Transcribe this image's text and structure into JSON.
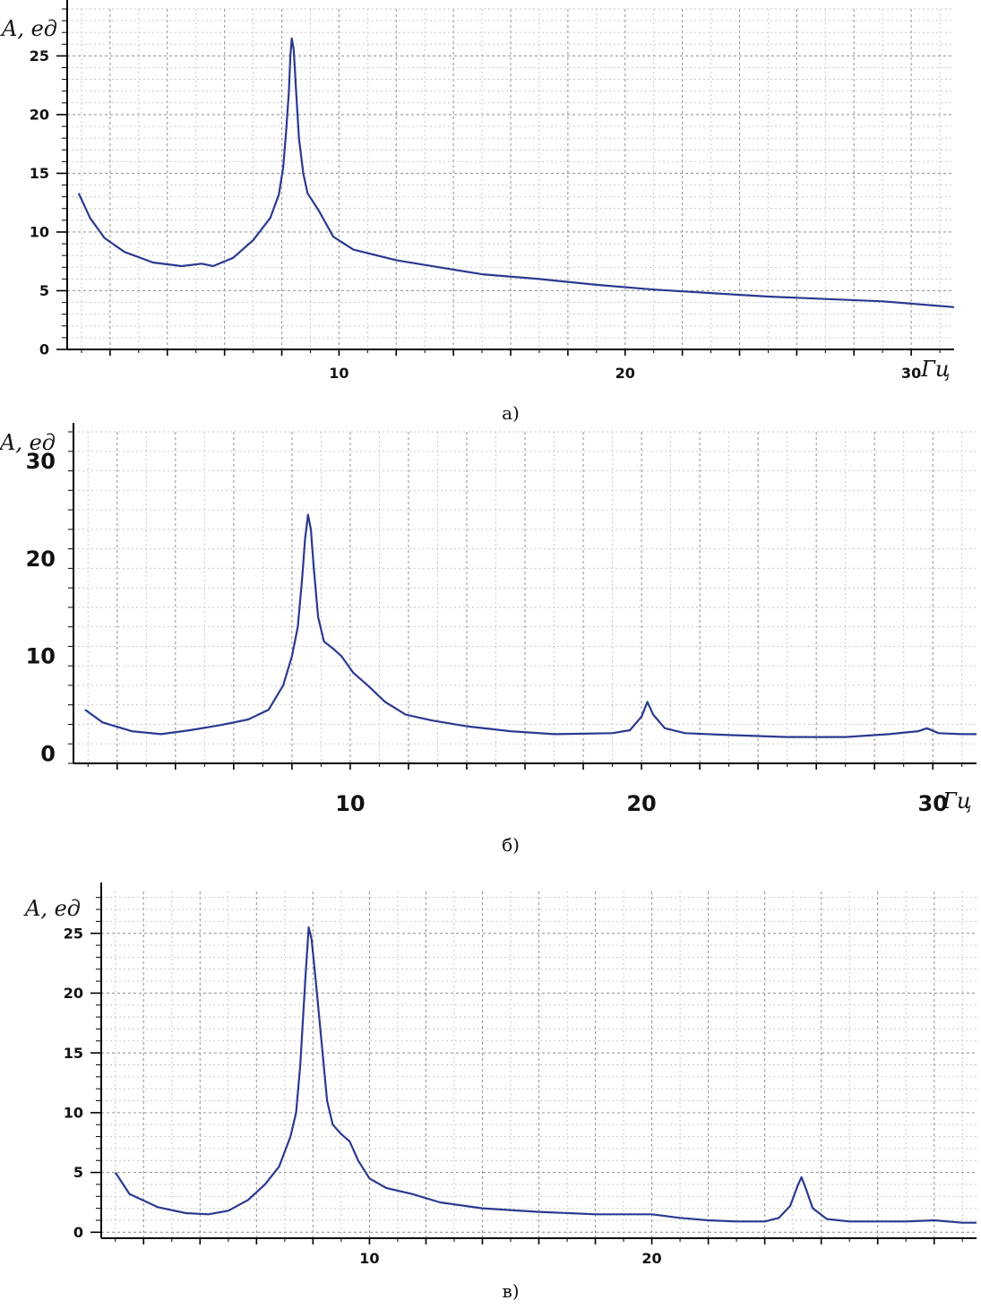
{
  "chart_data": [
    {
      "type": "line",
      "caption": "а)",
      "ylabel": "A, ед",
      "xlabel": "Гц",
      "xlim": [
        0.5,
        31.5
      ],
      "ylim": [
        0,
        29
      ],
      "x_ticks": [
        10,
        20,
        30
      ],
      "x_tick_labels": [
        "10",
        "20",
        "30"
      ],
      "y_ticks": [
        0,
        5,
        10,
        15,
        20,
        25
      ],
      "y_tick_labels": [
        "0",
        "5",
        "10",
        "15",
        "20",
        "25"
      ],
      "grid": true,
      "series": [
        {
          "color": "#2b3990",
          "points": [
            [
              0.9,
              13.3
            ],
            [
              1.3,
              11.2
            ],
            [
              1.8,
              9.5
            ],
            [
              2.5,
              8.3
            ],
            [
              3.5,
              7.4
            ],
            [
              4.5,
              7.1
            ],
            [
              5.2,
              7.3
            ],
            [
              5.6,
              7.1
            ],
            [
              6.3,
              7.8
            ],
            [
              7.0,
              9.3
            ],
            [
              7.6,
              11.2
            ],
            [
              7.9,
              13.2
            ],
            [
              8.05,
              15.5
            ],
            [
              8.15,
              18.5
            ],
            [
              8.25,
              22
            ],
            [
              8.3,
              25
            ],
            [
              8.35,
              26.5
            ],
            [
              8.42,
              25.5
            ],
            [
              8.5,
              22
            ],
            [
              8.6,
              18
            ],
            [
              8.75,
              15
            ],
            [
              8.9,
              13.3
            ],
            [
              9.3,
              11.8
            ],
            [
              9.8,
              9.6
            ],
            [
              10.5,
              8.5
            ],
            [
              12,
              7.6
            ],
            [
              13.5,
              7.0
            ],
            [
              15,
              6.4
            ],
            [
              17,
              6.0
            ],
            [
              19,
              5.5
            ],
            [
              21,
              5.1
            ],
            [
              23,
              4.8
            ],
            [
              25,
              4.5
            ],
            [
              27,
              4.3
            ],
            [
              29,
              4.1
            ],
            [
              31,
              3.7
            ],
            [
              31.5,
              3.6
            ]
          ]
        }
      ]
    },
    {
      "type": "line",
      "caption": "б)",
      "ylabel": "A, ед",
      "xlabel": "Гц",
      "xlim": [
        0.5,
        31.5
      ],
      "ylim": [
        -1,
        33
      ],
      "x_ticks": [
        10,
        20,
        30
      ],
      "x_tick_labels": [
        "10",
        "20",
        "30"
      ],
      "y_ticks": [
        0,
        10,
        20,
        30
      ],
      "y_tick_labels": [
        "0",
        "10",
        "20",
        "30"
      ],
      "grid": true,
      "series": [
        {
          "color": "#2b3990",
          "points": [
            [
              0.9,
              4.5
            ],
            [
              1.5,
              3.2
            ],
            [
              2.5,
              2.3
            ],
            [
              3.5,
              2.0
            ],
            [
              4.5,
              2.4
            ],
            [
              5.5,
              2.9
            ],
            [
              6.5,
              3.5
            ],
            [
              7.2,
              4.5
            ],
            [
              7.7,
              7.0
            ],
            [
              8.0,
              10.0
            ],
            [
              8.2,
              13.0
            ],
            [
              8.35,
              18.0
            ],
            [
              8.45,
              22.0
            ],
            [
              8.55,
              24.5
            ],
            [
              8.65,
              23.0
            ],
            [
              8.75,
              19.0
            ],
            [
              8.9,
              14.0
            ],
            [
              9.1,
              11.5
            ],
            [
              9.4,
              10.8
            ],
            [
              9.7,
              10.0
            ],
            [
              10.1,
              8.3
            ],
            [
              10.6,
              7.0
            ],
            [
              11.2,
              5.3
            ],
            [
              11.9,
              4.0
            ],
            [
              12.8,
              3.4
            ],
            [
              14,
              2.8
            ],
            [
              15.5,
              2.3
            ],
            [
              17,
              2.0
            ],
            [
              19,
              2.1
            ],
            [
              19.6,
              2.4
            ],
            [
              20.0,
              3.8
            ],
            [
              20.2,
              5.3
            ],
            [
              20.4,
              4.0
            ],
            [
              20.8,
              2.6
            ],
            [
              21.5,
              2.1
            ],
            [
              23,
              1.9
            ],
            [
              25,
              1.7
            ],
            [
              27,
              1.7
            ],
            [
              28.5,
              2.0
            ],
            [
              29.5,
              2.3
            ],
            [
              29.8,
              2.6
            ],
            [
              30.2,
              2.1
            ],
            [
              31,
              2.0
            ],
            [
              31.5,
              2.0
            ]
          ]
        }
      ]
    },
    {
      "type": "line",
      "caption": "в)",
      "ylabel": "A, ед",
      "xlabel": "",
      "xlim": [
        0.5,
        31.5
      ],
      "ylim": [
        -0.5,
        28.5
      ],
      "x_ticks": [
        10,
        20,
        30
      ],
      "x_tick_labels": [
        "10",
        "20",
        ""
      ],
      "y_ticks": [
        0,
        5,
        10,
        15,
        20,
        25
      ],
      "y_tick_labels": [
        "0",
        "5",
        "10",
        "15",
        "20",
        "25"
      ],
      "grid": true,
      "series": [
        {
          "color": "#2b3990",
          "points": [
            [
              1.0,
              5.0
            ],
            [
              1.5,
              3.2
            ],
            [
              2.5,
              2.1
            ],
            [
              3.5,
              1.6
            ],
            [
              4.3,
              1.5
            ],
            [
              5.0,
              1.8
            ],
            [
              5.7,
              2.7
            ],
            [
              6.3,
              4.0
            ],
            [
              6.8,
              5.5
            ],
            [
              7.2,
              8.0
            ],
            [
              7.4,
              10.0
            ],
            [
              7.55,
              14.0
            ],
            [
              7.65,
              18.0
            ],
            [
              7.75,
              22.0
            ],
            [
              7.85,
              25.5
            ],
            [
              7.95,
              24.5
            ],
            [
              8.1,
              21.0
            ],
            [
              8.3,
              16.0
            ],
            [
              8.5,
              11.0
            ],
            [
              8.7,
              9.0
            ],
            [
              9.0,
              8.2
            ],
            [
              9.3,
              7.6
            ],
            [
              9.6,
              6.0
            ],
            [
              10,
              4.5
            ],
            [
              10.6,
              3.7
            ],
            [
              11.5,
              3.2
            ],
            [
              12.5,
              2.5
            ],
            [
              14,
              2.0
            ],
            [
              16,
              1.7
            ],
            [
              18,
              1.5
            ],
            [
              20,
              1.5
            ],
            [
              21,
              1.2
            ],
            [
              22,
              1.0
            ],
            [
              23,
              0.9
            ],
            [
              24,
              0.9
            ],
            [
              24.5,
              1.2
            ],
            [
              24.9,
              2.2
            ],
            [
              25.15,
              3.8
            ],
            [
              25.3,
              4.6
            ],
            [
              25.45,
              3.7
            ],
            [
              25.7,
              2.0
            ],
            [
              26.2,
              1.1
            ],
            [
              27,
              0.9
            ],
            [
              29,
              0.9
            ],
            [
              30,
              1.0
            ],
            [
              31,
              0.8
            ],
            [
              31.5,
              0.8
            ]
          ]
        }
      ]
    }
  ]
}
